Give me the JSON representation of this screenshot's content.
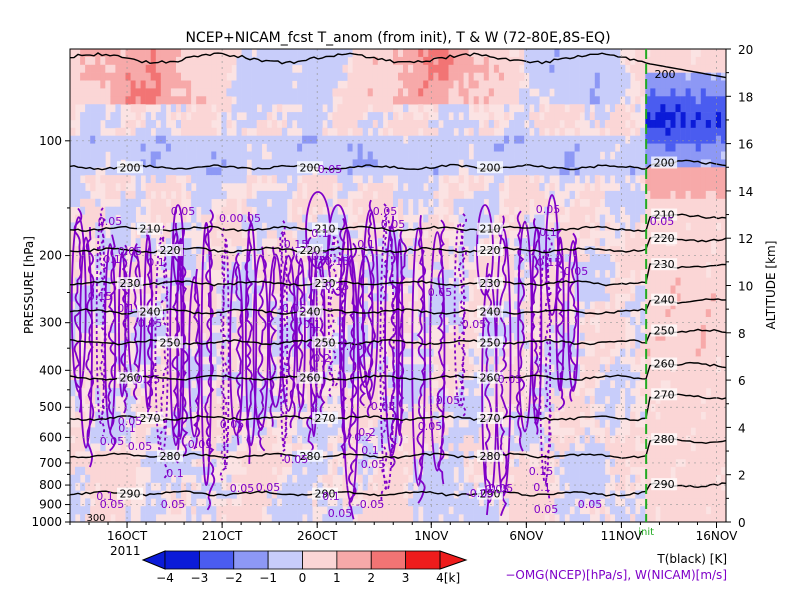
{
  "chart_data": {
    "type": "heatmap",
    "title": "NCEP+NICAM_fcst T_anom (from init), T & W  (72-80E,8S-EQ)",
    "ylabel_left": "PRESSURE [hPa]",
    "ylabel_right": "ALTITUDE [km]",
    "pressure_ticks": [
      "100",
      "200",
      "300",
      "400",
      "500",
      "600",
      "700",
      "800",
      "900",
      "1000"
    ],
    "pressure_values": [
      100,
      200,
      300,
      400,
      500,
      600,
      700,
      800,
      900,
      1000
    ],
    "altitude_ticks": [
      "0",
      "2",
      "4",
      "6",
      "8",
      "10",
      "12",
      "14",
      "16",
      "18",
      "20"
    ],
    "altitude_values": [
      0,
      2,
      4,
      6,
      8,
      10,
      12,
      14,
      16,
      18,
      20
    ],
    "ylim_km": [
      0,
      20
    ],
    "x_day_range": [
      13,
      47.5
    ],
    "x_ticks": [
      {
        "label": "16OCT",
        "day": 16
      },
      {
        "label": "21OCT",
        "day": 21
      },
      {
        "label": "26OCT",
        "day": 26
      },
      {
        "label": "1NOV",
        "day": 32
      },
      {
        "label": "6NOV",
        "day": 37
      },
      {
        "label": "11NOV",
        "day": 42
      },
      {
        "label": "16NOV",
        "day": 47
      }
    ],
    "year_label": "2011",
    "init_day": 43.3,
    "init_label": "init",
    "temperature_contours": [
      {
        "label": "200",
        "alt_km": 15.0,
        "forecast_alt_km": 15.2
      },
      {
        "label": "210",
        "alt_km": 12.4,
        "forecast_alt_km": 13.0
      },
      {
        "label": "220",
        "alt_km": 11.5,
        "forecast_alt_km": 12.0
      },
      {
        "label": "230",
        "alt_km": 10.1,
        "forecast_alt_km": 10.9
      },
      {
        "label": "240",
        "alt_km": 8.9,
        "forecast_alt_km": 9.4
      },
      {
        "label": "250",
        "alt_km": 7.6,
        "forecast_alt_km": 8.1
      },
      {
        "label": "260",
        "alt_km": 6.1,
        "forecast_alt_km": 6.7
      },
      {
        "label": "270",
        "alt_km": 4.4,
        "forecast_alt_km": 5.4
      },
      {
        "label": "280",
        "alt_km": 2.8,
        "forecast_alt_km": 3.5
      },
      {
        "label": "290",
        "alt_km": 1.2,
        "forecast_alt_km": 1.6
      }
    ],
    "upper_200_contour_label": "200",
    "contour_labels_visible": [
      "200",
      "210",
      "220",
      "230",
      "240",
      "250",
      "260",
      "270",
      "280",
      "290",
      "300"
    ],
    "w_contour_labels_visible": [
      "0.05",
      "0.1",
      "0.15",
      "0.2",
      "0.25",
      "-0.05",
      "0.00.05"
    ],
    "colorbar": {
      "ticks": [
        "−4",
        "−3",
        "−2",
        "−1",
        "0",
        "1",
        "2",
        "3",
        "4"
      ],
      "values": [
        -4,
        -3,
        -2,
        -1,
        0,
        1,
        2,
        3,
        4
      ],
      "colors": [
        "#0b1bd8",
        "#4a5cf0",
        "#8d98f5",
        "#c8cdfa",
        "#ffffff",
        "#fbd6d6",
        "#f7a9a9",
        "#f27474",
        "#ee1c1c"
      ],
      "unit": "[k]"
    },
    "legend_temperature": "T(black) [K]",
    "legend_wind": "−OMG(NCEP)[hPa/s], W(NICAM)[m/s]"
  },
  "colors": {
    "warm": "#f03030",
    "cold": "#2030d8",
    "w_contour": "#7f00c8",
    "init_line": "#22aa22"
  }
}
